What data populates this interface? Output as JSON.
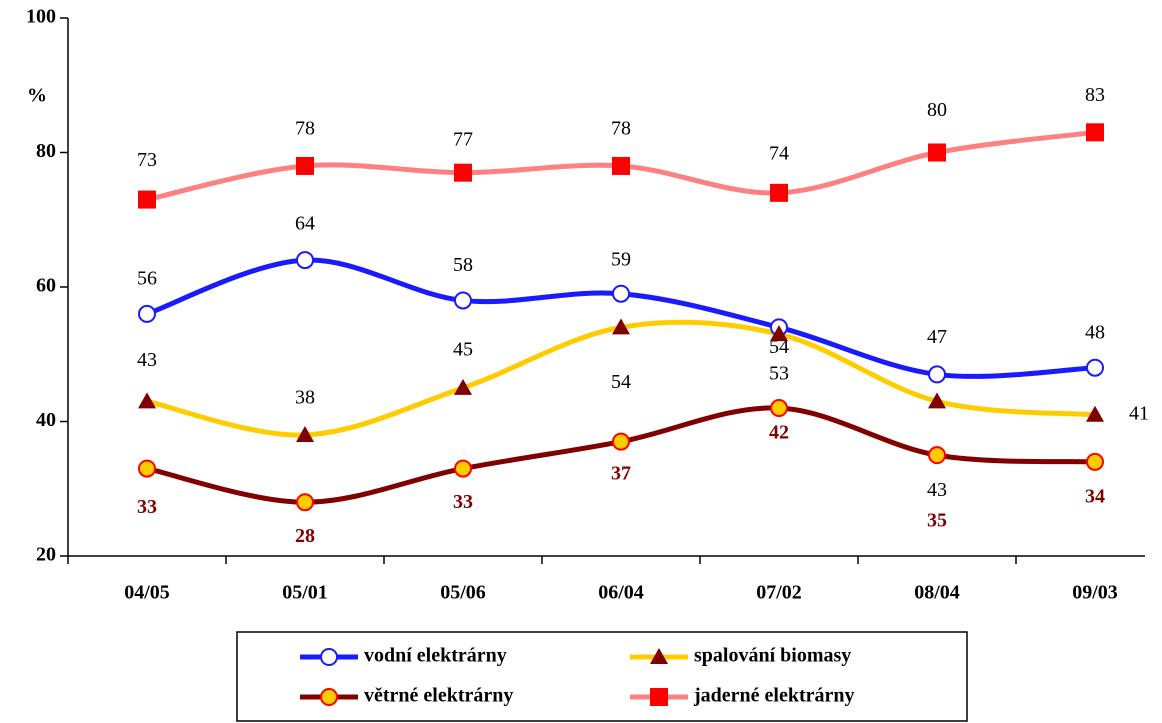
{
  "chart_data": {
    "type": "line",
    "ylabel": "%",
    "categories": [
      "04/05",
      "05/01",
      "05/06",
      "06/04",
      "07/02",
      "08/04",
      "09/03"
    ],
    "ylim": [
      20,
      100
    ],
    "yticks": [
      20,
      40,
      60,
      80,
      100
    ],
    "grid": false,
    "legend": "bottom",
    "series": [
      {
        "name": "vodní elektrárny",
        "color": "#1a1aff",
        "marker": "circle",
        "marker_color": "#ffffff",
        "values": [
          56,
          64,
          58,
          59,
          54,
          47,
          48
        ]
      },
      {
        "name": "spalování biomasy",
        "color": "#ffcc00",
        "marker": "triangle",
        "marker_color": "#800000",
        "values": [
          43,
          38,
          45,
          54,
          53,
          43,
          41
        ]
      },
      {
        "name": "větrné elektrárny",
        "color": "#800000",
        "marker": "circle",
        "marker_color": "#ffcc00",
        "values": [
          33,
          28,
          33,
          37,
          42,
          35,
          34
        ]
      },
      {
        "name": "jaderné elektrárny",
        "color": "#ff8080",
        "marker": "square",
        "marker_color": "#ff0000",
        "values": [
          73,
          78,
          77,
          78,
          74,
          80,
          83
        ]
      }
    ]
  }
}
